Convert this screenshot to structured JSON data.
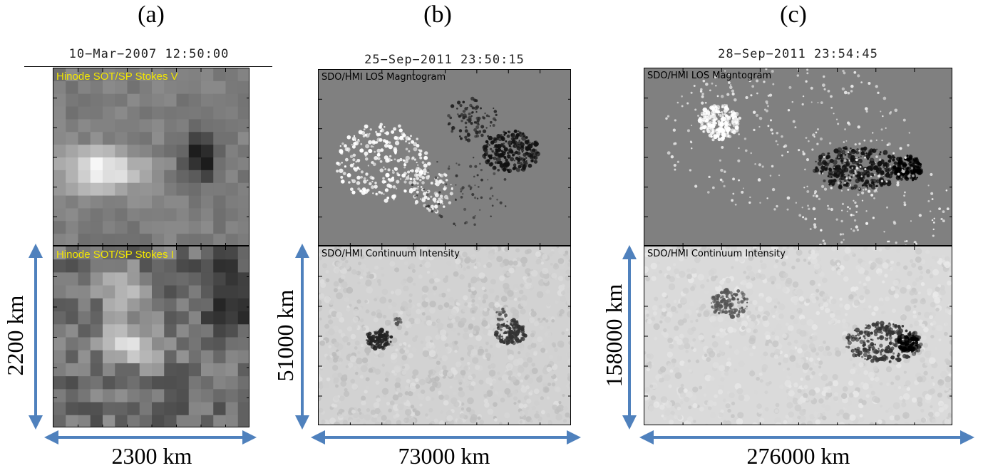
{
  "panels": [
    {
      "label": "(a)",
      "timestamp": "10−Mar−2007 12:50:00",
      "top_title": "Hinode SOT/SP Stokes V",
      "bottom_title": "Hinode SOT/SP Stokes I",
      "height_text": "2200 km",
      "width_text": "2300 km"
    },
    {
      "label": "(b)",
      "timestamp": "25−Sep−2011 23:50:15",
      "top_title": "SDO/HMI LOS Magntogram",
      "bottom_title": "SDO/HMI Continuum Intensity",
      "height_text": "51000 km",
      "width_text": "73000 km"
    },
    {
      "label": "(c)",
      "timestamp": "28−Sep−2011 23:54:45",
      "top_title": "SDO/HMI LOS Magntogram",
      "bottom_title": "SDO/HMI Continuum Intensity",
      "height_text": "158000 km",
      "width_text": "276000 km"
    }
  ],
  "colors": {
    "arrow": "#4f81bd",
    "hinode_label": "#f2e600"
  }
}
